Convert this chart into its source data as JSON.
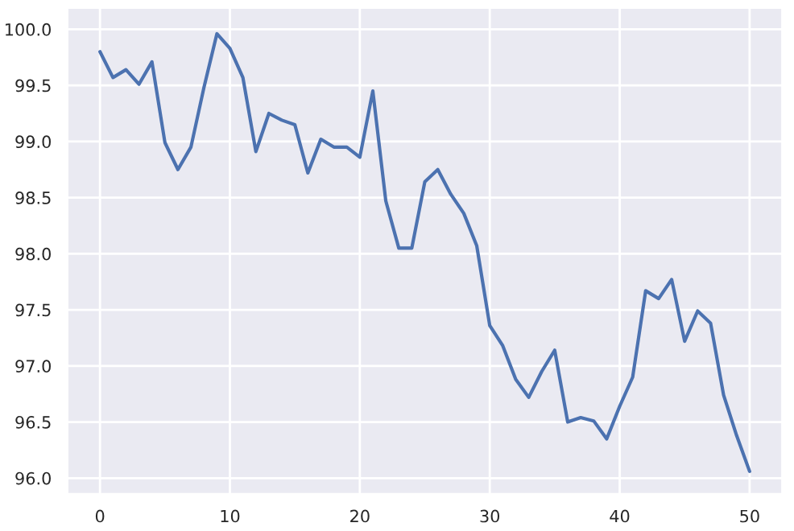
{
  "chart_data": {
    "type": "line",
    "x": [
      0,
      1,
      2,
      3,
      4,
      5,
      6,
      7,
      8,
      9,
      10,
      11,
      12,
      13,
      14,
      15,
      16,
      17,
      18,
      19,
      20,
      21,
      22,
      23,
      24,
      25,
      26,
      27,
      28,
      29,
      30,
      31,
      32,
      33,
      34,
      35,
      36,
      37,
      38,
      39,
      40,
      41,
      42,
      43,
      44,
      45,
      46,
      47,
      48,
      49,
      50
    ],
    "series": [
      {
        "color": "#4c72b0",
        "values": [
          99.8,
          99.57,
          99.64,
          99.51,
          99.71,
          98.99,
          98.75,
          98.95,
          99.48,
          99.96,
          99.83,
          99.57,
          98.91,
          99.25,
          99.19,
          99.15,
          98.72,
          99.02,
          98.95,
          98.95,
          98.86,
          99.45,
          98.47,
          98.05,
          98.05,
          98.64,
          98.75,
          98.53,
          98.36,
          98.07,
          97.36,
          97.18,
          96.88,
          96.72,
          96.95,
          97.14,
          96.5,
          96.54,
          96.51,
          96.35,
          96.64,
          96.9,
          97.67,
          97.6,
          97.77,
          97.22,
          97.49,
          97.38,
          96.74,
          96.38,
          96.06
        ]
      }
    ],
    "xlim": [
      -2.5,
      52.5
    ],
    "xticks": [
      0,
      10,
      20,
      30,
      40,
      50
    ],
    "ylim": [
      95.86,
      100.19
    ],
    "yticks": [
      {
        "value": 96,
        "label": "96.0"
      },
      {
        "value": 96.5,
        "label": "96.5"
      },
      {
        "value": 97,
        "label": "97.0"
      },
      {
        "value": 97.5,
        "label": "97.5"
      },
      {
        "value": 98,
        "label": "98.0"
      },
      {
        "value": 98.5,
        "label": "98.5"
      },
      {
        "value": 99,
        "label": "99.0"
      },
      {
        "value": 99.5,
        "label": "99.5"
      },
      {
        "value": 100,
        "label": "100.0"
      }
    ],
    "grid": true,
    "marker": "none",
    "line_style": "solid"
  }
}
